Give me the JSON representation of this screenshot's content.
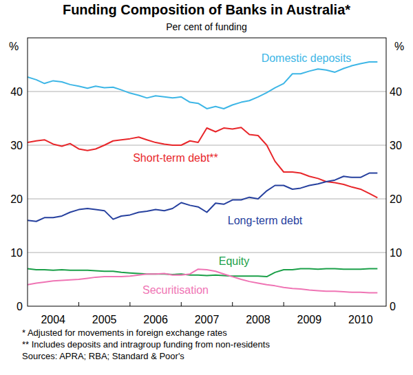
{
  "chart_data": {
    "type": "line",
    "title": "Funding Composition of Banks in Australia*",
    "subtitle": "Per cent of funding",
    "y_label": "%",
    "notes": [
      "*  Adjusted for movements in foreign exchange rates",
      "** Includes deposits and intragroup funding from non-residents",
      "Sources: APRA; RBA; Standard & Poor's"
    ],
    "x": [
      2004,
      2004.17,
      2004.33,
      2004.5,
      2004.67,
      2004.83,
      2005,
      2005.17,
      2005.33,
      2005.5,
      2005.67,
      2005.83,
      2006,
      2006.17,
      2006.33,
      2006.5,
      2006.67,
      2006.83,
      2007,
      2007.17,
      2007.33,
      2007.5,
      2007.67,
      2007.83,
      2008,
      2008.17,
      2008.33,
      2008.5,
      2008.67,
      2008.83,
      2009,
      2009.17,
      2009.33,
      2009.5,
      2009.67,
      2009.83,
      2010,
      2010.17,
      2010.33,
      2010.5,
      2010.67,
      2010.83
    ],
    "xlim": [
      2004,
      2011
    ],
    "xticks": [
      {
        "value": 2004.5,
        "label": "2004"
      },
      {
        "value": 2005.5,
        "label": "2005"
      },
      {
        "value": 2006.5,
        "label": "2006"
      },
      {
        "value": 2007.5,
        "label": "2007"
      },
      {
        "value": 2008.5,
        "label": "2008"
      },
      {
        "value": 2009.5,
        "label": "2009"
      },
      {
        "value": 2010.5,
        "label": "2010"
      }
    ],
    "ylim": [
      0,
      50
    ],
    "yticks": [
      0,
      10,
      20,
      30,
      40
    ],
    "grid": true,
    "series": [
      {
        "name": "Domestic deposits",
        "color": "#3db6e6",
        "values": [
          42.7,
          42.2,
          41.5,
          42.0,
          41.8,
          41.3,
          41.0,
          40.6,
          41.0,
          40.7,
          40.8,
          40.3,
          39.7,
          39.3,
          38.8,
          39.2,
          39.0,
          38.8,
          39.0,
          38.0,
          37.8,
          36.8,
          37.2,
          36.8,
          37.5,
          38.0,
          38.3,
          39.0,
          39.8,
          40.7,
          41.5,
          43.3,
          43.3,
          43.8,
          44.2,
          44.0,
          43.6,
          44.3,
          44.8,
          45.2,
          45.5,
          45.5
        ]
      },
      {
        "name": "Short-term debt**",
        "color": "#e8262a",
        "values": [
          30.5,
          30.8,
          31.0,
          30.2,
          29.8,
          30.3,
          29.3,
          29.0,
          29.3,
          30.0,
          30.8,
          31.0,
          31.2,
          31.5,
          31.0,
          30.5,
          30.2,
          30.0,
          30.0,
          30.8,
          30.5,
          33.2,
          32.5,
          33.2,
          33.0,
          33.3,
          32.0,
          31.8,
          30.0,
          27.0,
          25.0,
          25.0,
          24.8,
          24.2,
          23.8,
          23.2,
          23.0,
          22.7,
          22.2,
          21.8,
          21.0,
          20.2
        ]
      },
      {
        "name": "Long-term debt",
        "color": "#26409e",
        "values": [
          16.0,
          15.8,
          16.5,
          16.5,
          16.8,
          17.5,
          18.0,
          18.2,
          18.0,
          17.8,
          16.2,
          16.8,
          17.0,
          17.5,
          17.7,
          18.0,
          17.8,
          18.2,
          19.3,
          18.8,
          18.5,
          17.5,
          19.2,
          19.0,
          19.8,
          19.8,
          20.3,
          20.0,
          21.5,
          22.5,
          22.5,
          21.8,
          22.0,
          22.5,
          22.8,
          23.2,
          23.5,
          24.2,
          24.0,
          24.0,
          24.8,
          24.8
        ]
      },
      {
        "name": "Equity",
        "color": "#1a9f48",
        "values": [
          7.0,
          6.8,
          6.8,
          6.7,
          6.8,
          6.7,
          6.7,
          6.7,
          6.6,
          6.5,
          6.5,
          6.3,
          6.2,
          6.1,
          6.0,
          6.0,
          6.0,
          5.9,
          6.0,
          5.8,
          5.8,
          5.7,
          5.8,
          5.7,
          5.6,
          5.6,
          5.6,
          5.6,
          5.5,
          6.3,
          6.8,
          6.8,
          7.0,
          7.0,
          6.9,
          7.0,
          7.0,
          6.9,
          6.9,
          6.9,
          7.0,
          7.0
        ]
      },
      {
        "name": "Securitisation",
        "color": "#ef74b4",
        "values": [
          4.0,
          4.3,
          4.5,
          4.7,
          4.8,
          4.9,
          5.0,
          5.2,
          5.4,
          5.5,
          5.5,
          5.5,
          5.6,
          5.8,
          6.0,
          6.0,
          6.1,
          5.8,
          5.8,
          6.0,
          6.9,
          6.8,
          6.5,
          6.0,
          5.5,
          5.0,
          4.6,
          4.3,
          4.0,
          3.8,
          3.5,
          3.3,
          3.2,
          3.0,
          2.9,
          2.8,
          2.8,
          2.7,
          2.6,
          2.6,
          2.5,
          2.5
        ]
      }
    ]
  }
}
